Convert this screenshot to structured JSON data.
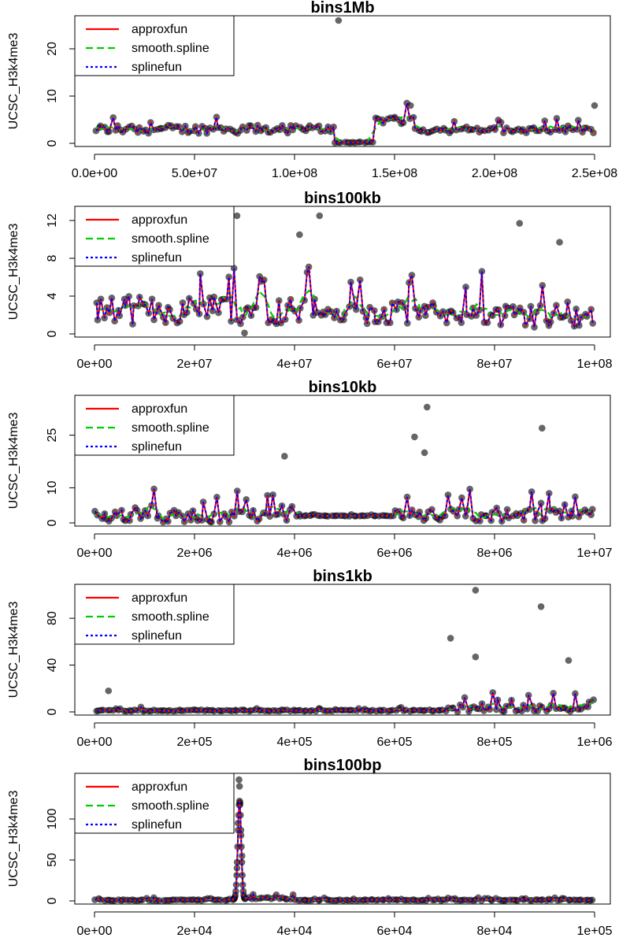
{
  "colors": {
    "approxfun": "#ff0000",
    "smooth_spline": "#00cc00",
    "splinefun": "#0000ff",
    "points": "#000000"
  },
  "legend": {
    "placement": "top-left",
    "entries": [
      {
        "label": "approxfun",
        "color": "#ff0000",
        "dash": "solid"
      },
      {
        "label": "smooth.spline",
        "color": "#00cc00",
        "dash": "dashed"
      },
      {
        "label": "splinefun",
        "color": "#0000ff",
        "dash": "dotted"
      }
    ]
  },
  "chart_data": [
    {
      "type": "scatter",
      "title": "bins1Mb",
      "ylabel": "UCSC_H3k4me3",
      "xlim": [
        0,
        250000000
      ],
      "ylim": [
        0,
        26
      ],
      "xticks": [
        0,
        50000000,
        100000000,
        150000000,
        200000000,
        250000000
      ],
      "xtick_labels": [
        "0.0e+00",
        "5.0e+07",
        "1.0e+08",
        "1.5e+08",
        "2.0e+08",
        "2.5e+08"
      ],
      "yticks": [
        0,
        10,
        20
      ],
      "ytick_labels": [
        "0",
        "10",
        "20"
      ],
      "grid": false,
      "outliers": [
        [
          122000000,
          26
        ],
        [
          158000000,
          8
        ],
        [
          250000000,
          8
        ]
      ],
      "segments": [
        {
          "x0": 0,
          "x1": 120000000,
          "base": 3,
          "amp": 3
        },
        {
          "x0": 120000000,
          "x1": 140000000,
          "base": 0.2,
          "amp": 0.3
        },
        {
          "x0": 140000000,
          "x1": 160000000,
          "base": 5,
          "amp": 3
        },
        {
          "x0": 160000000,
          "x1": 250000000,
          "base": 2.8,
          "amp": 2
        }
      ]
    },
    {
      "type": "scatter",
      "title": "bins100kb",
      "ylabel": "UCSC_H3k4me3",
      "xlim": [
        0,
        100000000
      ],
      "ylim": [
        0,
        13
      ],
      "xticks": [
        0,
        20000000,
        40000000,
        60000000,
        80000000,
        100000000
      ],
      "xtick_labels": [
        "0e+00",
        "2e+07",
        "4e+07",
        "6e+07",
        "8e+07",
        "1e+08"
      ],
      "yticks": [
        0,
        4,
        8,
        12
      ],
      "ytick_labels": [
        "0",
        "4",
        "8",
        "12"
      ],
      "grid": false,
      "outliers": [
        [
          28500000,
          12.5
        ],
        [
          45000000,
          12.5
        ],
        [
          41000000,
          10.5
        ],
        [
          85000000,
          11.7
        ],
        [
          93000000,
          9.7
        ],
        [
          30000000,
          0.1
        ]
      ],
      "segments": [
        {
          "x0": 0,
          "x1": 45000000,
          "base": 2.5,
          "amp": 5
        },
        {
          "x0": 45000000,
          "x1": 70000000,
          "base": 2.2,
          "amp": 4
        },
        {
          "x0": 70000000,
          "x1": 100000000,
          "base": 1.9,
          "amp": 4
        }
      ]
    },
    {
      "type": "scatter",
      "title": "bins10kb",
      "ylabel": "UCSC_H3k4me3",
      "xlim": [
        0,
        10000000
      ],
      "ylim": [
        0,
        35
      ],
      "xticks": [
        0,
        2000000,
        4000000,
        6000000,
        8000000,
        10000000
      ],
      "xtick_labels": [
        "0e+00",
        "2e+06",
        "4e+06",
        "6e+06",
        "8e+06",
        "1e+07"
      ],
      "yticks": [
        0,
        10,
        25
      ],
      "ytick_labels": [
        "0",
        "10",
        "25"
      ],
      "grid": false,
      "outliers": [
        [
          6650000,
          33
        ],
        [
          6400000,
          24.5
        ],
        [
          8950000,
          27
        ],
        [
          3800000,
          19
        ],
        [
          6600000,
          20
        ]
      ],
      "segments": [
        {
          "x0": 0,
          "x1": 4000000,
          "base": 2,
          "amp": 6
        },
        {
          "x0": 4000000,
          "x1": 6000000,
          "base": 2,
          "amp": 0.4
        },
        {
          "x0": 6000000,
          "x1": 10000000,
          "base": 2.2,
          "amp": 6
        }
      ]
    },
    {
      "type": "scatter",
      "title": "bins1kb",
      "ylabel": "UCSC_H3k4me3",
      "xlim": [
        0,
        1000000
      ],
      "ylim": [
        0,
        105
      ],
      "xticks": [
        0,
        200000,
        400000,
        600000,
        800000,
        1000000
      ],
      "xtick_labels": [
        "0e+00",
        "2e+05",
        "4e+05",
        "6e+05",
        "8e+05",
        "1e+06"
      ],
      "yticks": [
        0,
        40,
        80
      ],
      "ytick_labels": [
        "0",
        "40",
        "80"
      ],
      "grid": false,
      "outliers": [
        [
          762000,
          104
        ],
        [
          893000,
          90
        ],
        [
          712000,
          63
        ],
        [
          762000,
          47
        ],
        [
          948000,
          44
        ],
        [
          28000,
          18
        ]
      ],
      "segments": [
        {
          "x0": 0,
          "x1": 700000,
          "base": 1.2,
          "amp": 2
        },
        {
          "x0": 700000,
          "x1": 1000000,
          "base": 2.5,
          "amp": 12
        }
      ]
    },
    {
      "type": "scatter",
      "title": "bins100bp",
      "ylabel": "UCSC_H3k4me3",
      "xlim": [
        0,
        100000
      ],
      "ylim": [
        0,
        150
      ],
      "xticks": [
        0,
        20000,
        40000,
        60000,
        80000,
        100000
      ],
      "xtick_labels": [
        "0e+00",
        "2e+04",
        "4e+04",
        "6e+04",
        "8e+04",
        "1e+05"
      ],
      "yticks": [
        0,
        50,
        100
      ],
      "ytick_labels": [
        "0",
        "50",
        "100"
      ],
      "grid": false,
      "outliers": [
        [
          28900,
          148
        ],
        [
          29000,
          140
        ],
        [
          29100,
          120
        ],
        [
          28700,
          95
        ],
        [
          29300,
          80
        ],
        [
          29500,
          55
        ],
        [
          28500,
          40
        ]
      ],
      "segments": [
        {
          "x0": 0,
          "x1": 28000,
          "base": 1,
          "amp": 2
        },
        {
          "x0": 30500,
          "x1": 40000,
          "base": 3,
          "amp": 4
        },
        {
          "x0": 40000,
          "x1": 100000,
          "base": 1,
          "amp": 2
        }
      ],
      "peak": {
        "x": 29000,
        "height": 120,
        "width": 700
      }
    }
  ]
}
